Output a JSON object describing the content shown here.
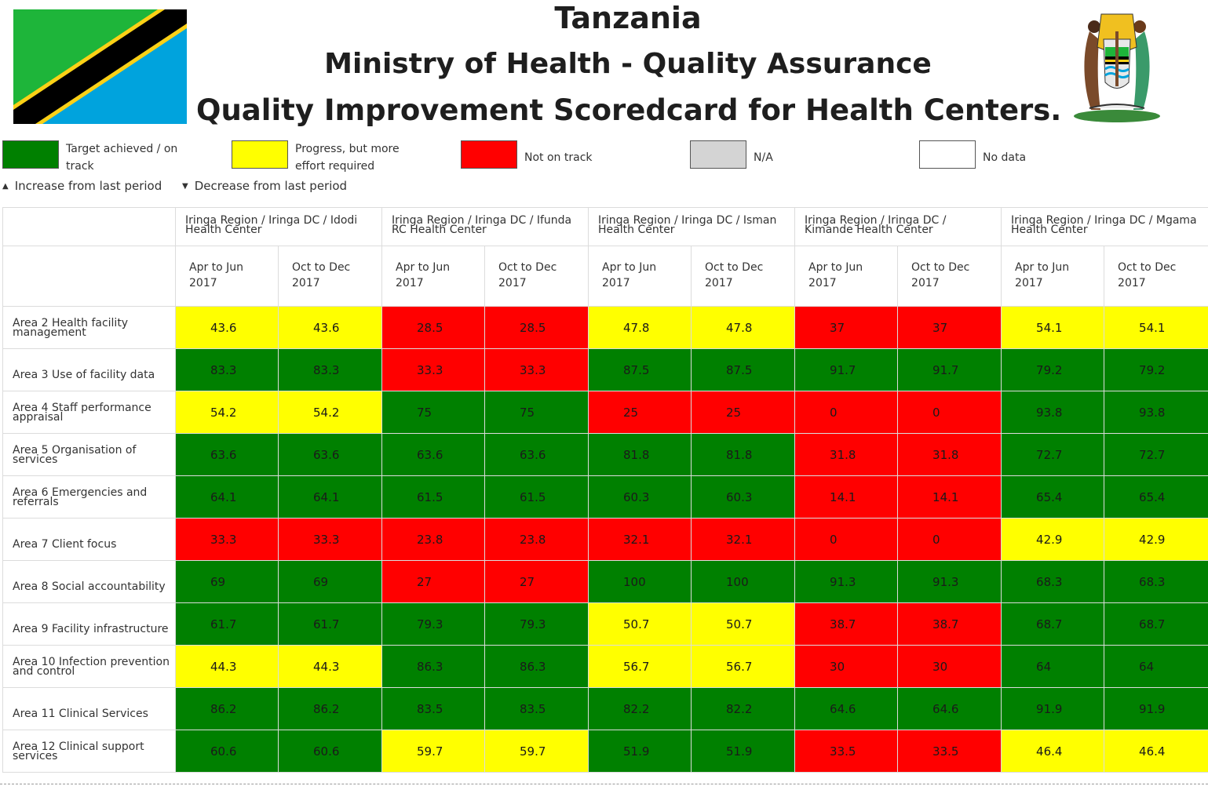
{
  "header": {
    "title_line1": "Tanzania",
    "title_line2": "Ministry of Health - Quality Assurance",
    "title_line3": "Quality Improvement Scoredcard for Health Centers."
  },
  "colors": {
    "green": "#008000",
    "yellow": "#ffff00",
    "red": "#ff0000",
    "gray": "#d4d4d4",
    "white": "#ffffff"
  },
  "legend": {
    "items": [
      {
        "line1": "Target achieved / on",
        "line2": "track",
        "color": "green"
      },
      {
        "line1": "Progress, but more",
        "line2": "effort required",
        "color": "yellow"
      },
      {
        "line1": "Not on track",
        "line2": "",
        "color": "red"
      },
      {
        "line1": "N/A",
        "line2": "",
        "color": "gray"
      },
      {
        "line1": "No data",
        "line2": "",
        "color": "white"
      }
    ],
    "increase_label": "Increase from last period",
    "decrease_label": "Decrease from last period"
  },
  "table": {
    "facilities": [
      {
        "line1": "Iringa Region / Iringa DC / Idodi",
        "line2": "Health Center"
      },
      {
        "line1": "Iringa Region / Iringa DC / Ifunda",
        "line2": "RC Health Center"
      },
      {
        "line1": "Iringa Region / Iringa DC / Isman",
        "line2": "Health Center"
      },
      {
        "line1": "Iringa Region / Iringa DC /",
        "line2": "Kimande Health Center"
      },
      {
        "line1": "Iringa Region / Iringa DC / Mgama",
        "line2": "Health Center"
      }
    ],
    "periods": [
      {
        "line1": "Apr to Jun",
        "line2": "2017"
      },
      {
        "line1": "Oct to Dec",
        "line2": "2017"
      }
    ],
    "rows": [
      {
        "label1": "Area 2 Health facility",
        "label2": "management",
        "values": [
          "43.6",
          "43.6",
          "28.5",
          "28.5",
          "47.8",
          "47.8",
          "37",
          "37",
          "54.1",
          "54.1"
        ],
        "colors": [
          "yellow",
          "yellow",
          "red",
          "red",
          "yellow",
          "yellow",
          "red",
          "red",
          "yellow",
          "yellow"
        ]
      },
      {
        "label1": "",
        "label2": "Area 3 Use of facility data",
        "values": [
          "83.3",
          "83.3",
          "33.3",
          "33.3",
          "87.5",
          "87.5",
          "91.7",
          "91.7",
          "79.2",
          "79.2"
        ],
        "colors": [
          "green",
          "green",
          "red",
          "red",
          "green",
          "green",
          "green",
          "green",
          "green",
          "green"
        ]
      },
      {
        "label1": "Area 4 Staff performance",
        "label2": "appraisal",
        "values": [
          "54.2",
          "54.2",
          "75",
          "75",
          "25",
          "25",
          "0",
          "0",
          "93.8",
          "93.8"
        ],
        "colors": [
          "yellow",
          "yellow",
          "green",
          "green",
          "red",
          "red",
          "red",
          "red",
          "green",
          "green"
        ]
      },
      {
        "label1": "Area 5 Organisation of",
        "label2": "services",
        "values": [
          "63.6",
          "63.6",
          "63.6",
          "63.6",
          "81.8",
          "81.8",
          "31.8",
          "31.8",
          "72.7",
          "72.7"
        ],
        "colors": [
          "green",
          "green",
          "green",
          "green",
          "green",
          "green",
          "red",
          "red",
          "green",
          "green"
        ]
      },
      {
        "label1": "Area 6 Emergencies and",
        "label2": "referrals",
        "values": [
          "64.1",
          "64.1",
          "61.5",
          "61.5",
          "60.3",
          "60.3",
          "14.1",
          "14.1",
          "65.4",
          "65.4"
        ],
        "colors": [
          "green",
          "green",
          "green",
          "green",
          "green",
          "green",
          "red",
          "red",
          "green",
          "green"
        ]
      },
      {
        "label1": "",
        "label2": "Area 7 Client focus",
        "values": [
          "33.3",
          "33.3",
          "23.8",
          "23.8",
          "32.1",
          "32.1",
          "0",
          "0",
          "42.9",
          "42.9"
        ],
        "colors": [
          "red",
          "red",
          "red",
          "red",
          "red",
          "red",
          "red",
          "red",
          "yellow",
          "yellow"
        ]
      },
      {
        "label1": "",
        "label2": "Area 8 Social accountability",
        "values": [
          "69",
          "69",
          "27",
          "27",
          "100",
          "100",
          "91.3",
          "91.3",
          "68.3",
          "68.3"
        ],
        "colors": [
          "green",
          "green",
          "red",
          "red",
          "green",
          "green",
          "green",
          "green",
          "green",
          "green"
        ]
      },
      {
        "label1": "",
        "label2": "Area 9 Facility infrastructure",
        "values": [
          "61.7",
          "61.7",
          "79.3",
          "79.3",
          "50.7",
          "50.7",
          "38.7",
          "38.7",
          "68.7",
          "68.7"
        ],
        "colors": [
          "green",
          "green",
          "green",
          "green",
          "yellow",
          "yellow",
          "red",
          "red",
          "green",
          "green"
        ]
      },
      {
        "label1": "Area 10 Infection prevention",
        "label2": "and control",
        "values": [
          "44.3",
          "44.3",
          "86.3",
          "86.3",
          "56.7",
          "56.7",
          "30",
          "30",
          "64",
          "64"
        ],
        "colors": [
          "yellow",
          "yellow",
          "green",
          "green",
          "yellow",
          "yellow",
          "red",
          "red",
          "green",
          "green"
        ]
      },
      {
        "label1": "",
        "label2": "Area 11 Clinical Services",
        "values": [
          "86.2",
          "86.2",
          "83.5",
          "83.5",
          "82.2",
          "82.2",
          "64.6",
          "64.6",
          "91.9",
          "91.9"
        ],
        "colors": [
          "green",
          "green",
          "green",
          "green",
          "green",
          "green",
          "green",
          "green",
          "green",
          "green"
        ]
      },
      {
        "label1": "Area 12 Clinical support",
        "label2": "services",
        "values": [
          "60.6",
          "60.6",
          "59.7",
          "59.7",
          "51.9",
          "51.9",
          "33.5",
          "33.5",
          "46.4",
          "46.4"
        ],
        "colors": [
          "green",
          "green",
          "yellow",
          "yellow",
          "green",
          "green",
          "red",
          "red",
          "yellow",
          "yellow"
        ]
      }
    ]
  }
}
